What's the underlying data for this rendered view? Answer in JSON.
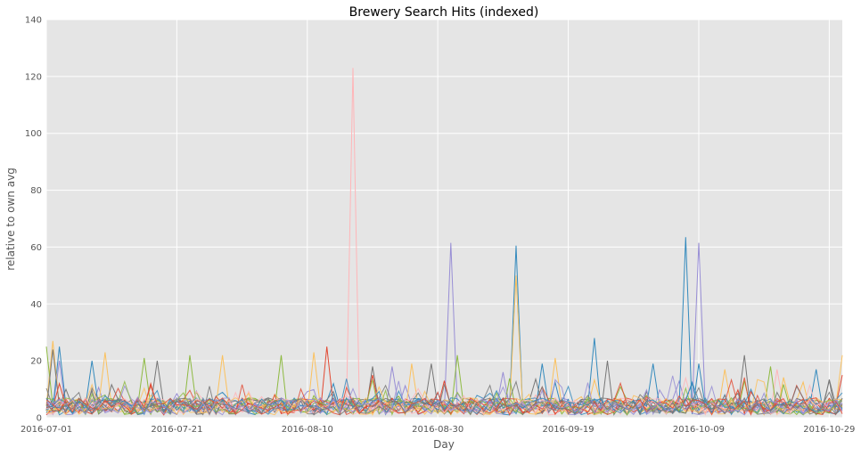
{
  "chart_data": {
    "type": "line",
    "title": "Brewery Search Hits (indexed)",
    "xlabel": "Day",
    "ylabel": "relative to own avg",
    "x_start": "2016-07-01",
    "x_end": "2016-10-31",
    "xlim": [
      "2016-07-01",
      "2016-10-31"
    ],
    "ylim": [
      0,
      140
    ],
    "x_ticks": [
      "2016-07-01",
      "2016-07-21",
      "2016-08-10",
      "2016-08-30",
      "2016-09-19",
      "2016-10-09",
      "2016-10-29"
    ],
    "y_ticks": [
      0,
      20,
      40,
      60,
      80,
      100,
      120,
      140
    ],
    "grid": true,
    "background": "#e5e5e5",
    "series_colors": [
      "#348abd",
      "#e24a33",
      "#988ed5",
      "#777777",
      "#fbc15e",
      "#8eba42",
      "#ffb5b8"
    ],
    "series": [
      {
        "color": "#ffb5b8",
        "note_peak_index": 0,
        "values": [
          3,
          2,
          4,
          3,
          2,
          5,
          3,
          2,
          4,
          3,
          2,
          3,
          4,
          2,
          3,
          5,
          2,
          3,
          4,
          2,
          3,
          2,
          4,
          3,
          2,
          3,
          4,
          2,
          3,
          5,
          2,
          3,
          4,
          2,
          3,
          2,
          4,
          3,
          2,
          3,
          4,
          2,
          3,
          5,
          2,
          3,
          4,
          2,
          3,
          2,
          4,
          3,
          2,
          3,
          4,
          2,
          3,
          5,
          2,
          3,
          4,
          2,
          3,
          2,
          4,
          3,
          2,
          3,
          4,
          2,
          3,
          5,
          2,
          3,
          4,
          2,
          3,
          2,
          4,
          3,
          2,
          3,
          4,
          2,
          3,
          5,
          2,
          3,
          4,
          2,
          3,
          2,
          4,
          3,
          2,
          3,
          4,
          2,
          3,
          5,
          2,
          3,
          4,
          2,
          3,
          2,
          4,
          3,
          2,
          3,
          4,
          2,
          3,
          5,
          2,
          3,
          4,
          2,
          3,
          2,
          4,
          3
        ],
        "peaks": [
          [
            47,
            123
          ],
          [
            75,
            8
          ],
          [
            112,
            17
          ]
        ]
      },
      {
        "color": "#988ed5",
        "values": [],
        "peaks": [
          [
            62,
            61.5
          ],
          [
            100,
            61.5
          ],
          [
            2,
            20
          ],
          [
            53,
            18
          ],
          [
            70,
            16
          ]
        ]
      },
      {
        "color": "#348abd",
        "values": [],
        "peaks": [
          [
            72,
            60.5
          ],
          [
            98,
            63.5
          ],
          [
            2,
            25
          ],
          [
            7,
            20
          ],
          [
            84,
            28
          ],
          [
            93,
            19
          ],
          [
            76,
            19
          ],
          [
            100,
            19
          ],
          [
            118,
            17
          ]
        ]
      },
      {
        "color": "#fbc15e",
        "values": [],
        "peaks": [
          [
            72,
            50
          ],
          [
            1,
            27
          ],
          [
            9,
            23
          ],
          [
            41,
            23
          ],
          [
            78,
            21
          ],
          [
            104,
            17
          ],
          [
            122,
            22
          ],
          [
            27,
            22
          ],
          [
            56,
            19
          ]
        ]
      },
      {
        "color": "#8eba42",
        "values": [],
        "peaks": [
          [
            0,
            25
          ],
          [
            15,
            21
          ],
          [
            22,
            22
          ],
          [
            36,
            22
          ],
          [
            63,
            22
          ],
          [
            111,
            18
          ],
          [
            107,
            13
          ]
        ]
      },
      {
        "color": "#777777",
        "values": [],
        "peaks": [
          [
            1,
            24
          ],
          [
            17,
            20
          ],
          [
            50,
            18
          ],
          [
            59,
            19
          ],
          [
            86,
            20
          ],
          [
            107,
            22
          ],
          [
            3,
            10
          ]
        ]
      },
      {
        "color": "#e24a33",
        "values": [],
        "peaks": [
          [
            43,
            25
          ],
          [
            50,
            15
          ],
          [
            61,
            13
          ],
          [
            122,
            15
          ],
          [
            2,
            12
          ],
          [
            16,
            12
          ]
        ]
      }
    ]
  }
}
